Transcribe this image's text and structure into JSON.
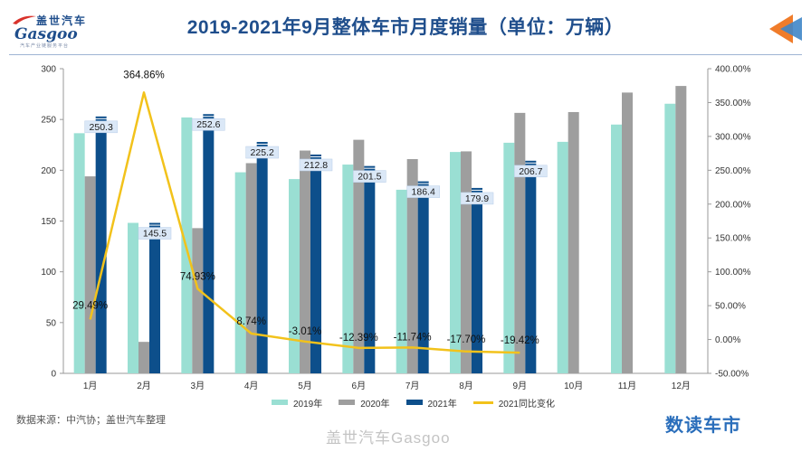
{
  "header": {
    "title": "2019-2021年9月整体车市月度销量（单位：万辆）",
    "logo_cn": "盖世汽车",
    "logo_en": "Gasgoo",
    "logo_sub": "汽车产业链服务平台"
  },
  "footer": {
    "source": "数据来源：中汽协；盖世汽车整理",
    "brand": "数读车市",
    "watermark": "盖世汽车Gasgoo"
  },
  "colors": {
    "s2019": "#9adfd3",
    "s2020": "#9e9e9e",
    "s2021": "#0d4f8b",
    "yoy": "#f2c21b",
    "title": "#1f4e8c"
  },
  "chart_data": {
    "type": "bar",
    "categories": [
      "1月",
      "2月",
      "3月",
      "4月",
      "5月",
      "6月",
      "7月",
      "8月",
      "9月",
      "10月",
      "11月",
      "12月"
    ],
    "series": [
      {
        "name": "2019年",
        "values": [
          236.5,
          148.2,
          252.0,
          198.0,
          191.3,
          205.6,
          180.8,
          218.0,
          227.1,
          228.0,
          245.0,
          265.5
        ]
      },
      {
        "name": "2020年",
        "values": [
          194.0,
          31.0,
          143.0,
          207.0,
          219.4,
          230.0,
          211.0,
          218.6,
          256.5,
          257.3,
          276.5,
          283.0
        ]
      },
      {
        "name": "2021年",
        "values": [
          250.3,
          145.5,
          252.6,
          225.2,
          212.8,
          201.5,
          186.4,
          179.9,
          206.7,
          null,
          null,
          null
        ]
      }
    ],
    "line_series": {
      "name": "2021同比变化",
      "values": [
        29.49,
        364.86,
        74.93,
        8.74,
        -3.01,
        -12.39,
        -11.74,
        -17.7,
        -19.42
      ],
      "labels": [
        "29.49%",
        "364.86%",
        "74.93%",
        "8.74%",
        "-3.01%",
        "-12.39%",
        "-11.74%",
        "-17.70%",
        "-19.42%"
      ]
    },
    "bar_labels_2021": [
      "250.3",
      "145.5",
      "252.6",
      "225.2",
      "212.8",
      "201.5",
      "186.4",
      "179.9",
      "206.7"
    ],
    "y_left": {
      "ylim": [
        0,
        300
      ],
      "ticks": [
        "0",
        "50",
        "100",
        "150",
        "200",
        "250",
        "300"
      ]
    },
    "y_right": {
      "ylim": [
        -50,
        400
      ],
      "ticks": [
        "-50.00%",
        "0.00%",
        "50.00%",
        "100.00%",
        "150.00%",
        "200.00%",
        "250.00%",
        "300.00%",
        "350.00%",
        "400.00%"
      ]
    },
    "legend": [
      "2019年",
      "2020年",
      "2021年",
      "2021同比变化"
    ],
    "legend_position": "bottom",
    "grid": false
  }
}
